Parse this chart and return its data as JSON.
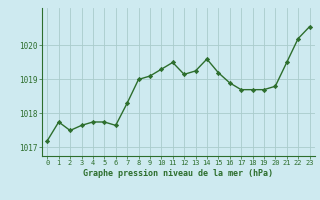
{
  "x": [
    0,
    1,
    2,
    3,
    4,
    5,
    6,
    7,
    8,
    9,
    10,
    11,
    12,
    13,
    14,
    15,
    16,
    17,
    18,
    19,
    20,
    21,
    22,
    23
  ],
  "y": [
    1017.2,
    1017.75,
    1017.5,
    1017.65,
    1017.75,
    1017.75,
    1017.65,
    1018.3,
    1019.0,
    1019.1,
    1019.3,
    1019.5,
    1019.15,
    1019.25,
    1019.6,
    1019.2,
    1018.9,
    1018.7,
    1018.7,
    1018.7,
    1018.8,
    1019.5,
    1020.2,
    1020.55
  ],
  "line_color": "#2d6e2d",
  "marker_color": "#2d6e2d",
  "bg_color": "#ceeaf0",
  "grid_color": "#aacccc",
  "xlabel": "Graphe pression niveau de la mer (hPa)",
  "xlabel_color": "#2d6e2d",
  "tick_color": "#2d6e2d",
  "ylim": [
    1016.75,
    1021.1
  ],
  "yticks": [
    1017,
    1018,
    1019,
    1020
  ],
  "xlim": [
    -0.5,
    23.5
  ],
  "xticks": [
    0,
    1,
    2,
    3,
    4,
    5,
    6,
    7,
    8,
    9,
    10,
    11,
    12,
    13,
    14,
    15,
    16,
    17,
    18,
    19,
    20,
    21,
    22,
    23
  ]
}
